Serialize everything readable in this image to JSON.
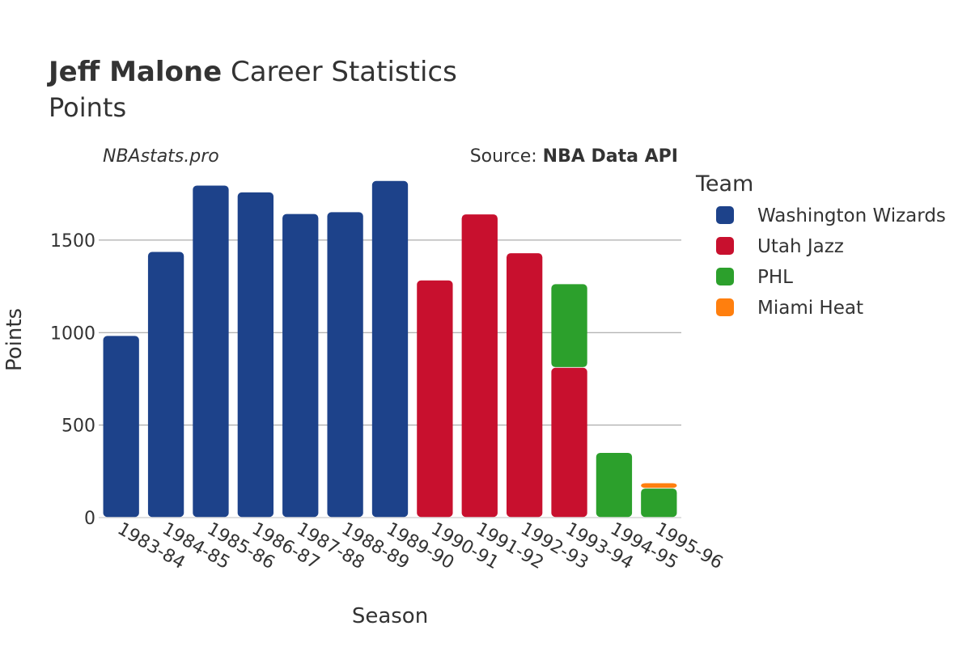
{
  "header": {
    "player_name": "Jeff Malone",
    "title_suffix": " Career Statistics",
    "subtitle": "Points",
    "watermark": "NBAstats.pro",
    "source_prefix": "Source: ",
    "source_name": "NBA Data API"
  },
  "colors": {
    "Washington Wizards": "#1d428a",
    "Utah Jazz": "#c8102e",
    "PHL": "#2ca02c",
    "Miami Heat": "#ff7f0e"
  },
  "chart_data": {
    "type": "bar",
    "stacked": true,
    "xlabel": "Season",
    "ylabel": "Points",
    "ylim": [
      0,
      1880
    ],
    "yticks": [
      0,
      500,
      1000,
      1500
    ],
    "grid": true,
    "legend": {
      "title": "Team",
      "placement": "right",
      "entries": [
        "Washington Wizards",
        "Utah Jazz",
        "PHL",
        "Miami Heat"
      ]
    },
    "categories": [
      "1983-84",
      "1984-85",
      "1985-86",
      "1986-87",
      "1987-88",
      "1988-89",
      "1989-90",
      "1990-91",
      "1991-92",
      "1992-93",
      "1993-94",
      "1994-95",
      "1995-96"
    ],
    "series": [
      {
        "name": "Washington Wizards",
        "values": [
          982,
          1436,
          1795,
          1758,
          1641,
          1651,
          1820,
          0,
          0,
          0,
          0,
          0,
          0
        ]
      },
      {
        "name": "Utah Jazz",
        "values": [
          0,
          0,
          0,
          0,
          0,
          0,
          0,
          1282,
          1639,
          1429,
          810,
          0,
          0
        ]
      },
      {
        "name": "PHL",
        "values": [
          0,
          0,
          0,
          0,
          0,
          0,
          0,
          0,
          0,
          0,
          452,
          350,
          157
        ]
      },
      {
        "name": "Miami Heat",
        "values": [
          0,
          0,
          0,
          0,
          0,
          0,
          0,
          0,
          0,
          0,
          0,
          0,
          29
        ]
      }
    ]
  }
}
